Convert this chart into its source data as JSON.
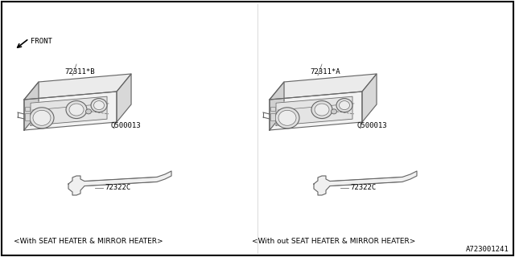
{
  "background_color": "#ffffff",
  "border_color": "#000000",
  "line_color": "#666666",
  "text_color": "#000000",
  "title_bottom_right": "A723001241",
  "left_label": "<With SEAT HEATER & MIRROR HEATER>",
  "right_label": "<With out SEAT HEATER & MIRROR HEATER>",
  "left_part1": "72311*B",
  "right_part1": "72311*A",
  "part2": "Q500013",
  "part3": "72322C",
  "front_label": "FRONT",
  "figsize": [
    6.4,
    3.2
  ],
  "dpi": 100
}
